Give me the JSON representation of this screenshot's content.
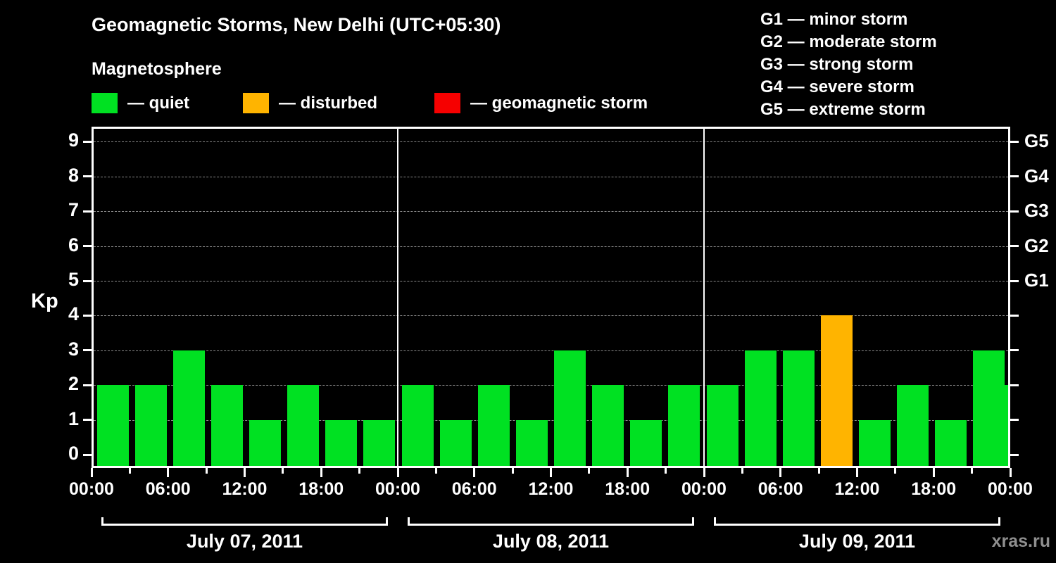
{
  "header": {
    "title": "Geomagnetic Storms, New Delhi (UTC+05:30)",
    "subtitle": "Magnetosphere"
  },
  "legend": {
    "quiet": "— quiet",
    "disturbed": "— disturbed",
    "storm": "— geomagnetic storm"
  },
  "g_legend": [
    {
      "code": "G1",
      "name": "minor storm"
    },
    {
      "code": "G2",
      "name": "moderate storm"
    },
    {
      "code": "G3",
      "name": "strong storm"
    },
    {
      "code": "G4",
      "name": "severe storm"
    },
    {
      "code": "G5",
      "name": "extreme storm"
    }
  ],
  "colors": {
    "quiet": "#00e122",
    "disturbed": "#ffb400",
    "storm": "#f60000",
    "axis": "#ffffff",
    "grid": "#8a8a8a"
  },
  "watermark": "xras.ru",
  "chart_data": {
    "type": "bar",
    "title": "Geomagnetic Storms, New Delhi (UTC+05:30)",
    "ylabel": "Kp",
    "ylim": [
      0,
      9.4
    ],
    "yticks": [
      0,
      1,
      2,
      3,
      4,
      5,
      6,
      7,
      8,
      9
    ],
    "grid": "dashed horizontal at each Kp level",
    "bar_interval_hours": 3,
    "days": [
      {
        "date": "July 07, 2011",
        "values": [
          2,
          2,
          3,
          2,
          1,
          2,
          1,
          1
        ]
      },
      {
        "date": "July 08, 2011",
        "values": [
          2,
          1,
          2,
          1,
          3,
          2,
          1,
          2
        ]
      },
      {
        "date": "July 09, 2011",
        "values": [
          2,
          3,
          3,
          4,
          1,
          2,
          1,
          3
        ]
      }
    ],
    "partial_last_interval": {
      "value": 2
    },
    "x_tick_labels": [
      "00:00",
      "06:00",
      "12:00",
      "18:00",
      "00:00",
      "06:00",
      "12:00",
      "18:00",
      "00:00",
      "06:00",
      "12:00",
      "18:00",
      "00:00"
    ],
    "right_axis": [
      {
        "kp": 5,
        "label": "G1"
      },
      {
        "kp": 6,
        "label": "G2"
      },
      {
        "kp": 7,
        "label": "G3"
      },
      {
        "kp": 8,
        "label": "G4"
      },
      {
        "kp": 9,
        "label": "G5"
      }
    ],
    "color_rule": {
      "quiet_max": 3,
      "disturbed_max": 4,
      "storm_min": 5
    },
    "legend_position": "top-left and top-right"
  }
}
